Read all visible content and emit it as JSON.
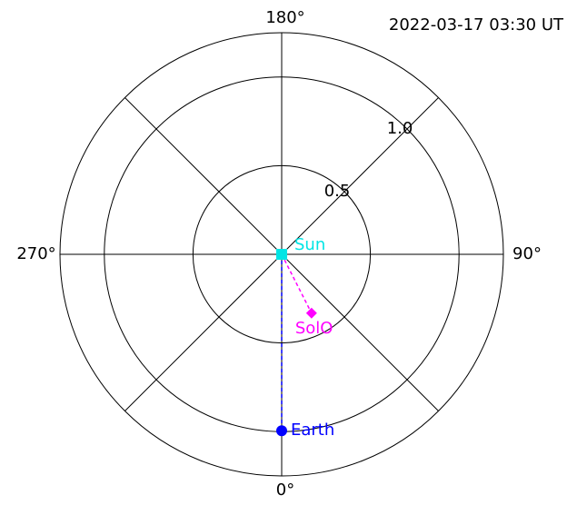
{
  "chart_data": {
    "type": "polar",
    "title": "2022-03-17 03:30 UT",
    "rlim": [
      0,
      1.25
    ],
    "rticks": [
      0.5,
      {
        "value": 1.0,
        "label": "1.0"
      }
    ],
    "thetaticks": [
      {
        "value": 0,
        "label": "0°"
      },
      {
        "value": 90,
        "label": "90°"
      },
      {
        "value": 180,
        "label": "180°"
      },
      {
        "value": 270,
        "label": "270°"
      }
    ],
    "thetagrid": [
      0,
      45,
      90,
      135,
      180,
      225,
      270,
      315
    ],
    "series": [
      {
        "name": "Sun",
        "color": "#00e5e5",
        "marker": "square",
        "r": 0,
        "theta": 0
      },
      {
        "name": "Earth",
        "color": "#0000ff",
        "marker": "circle",
        "r": 0.995,
        "theta": 0
      },
      {
        "name": "SolO",
        "color": "#ff00ff",
        "marker": "diamond",
        "r": 0.372,
        "theta": 26.9
      }
    ]
  }
}
